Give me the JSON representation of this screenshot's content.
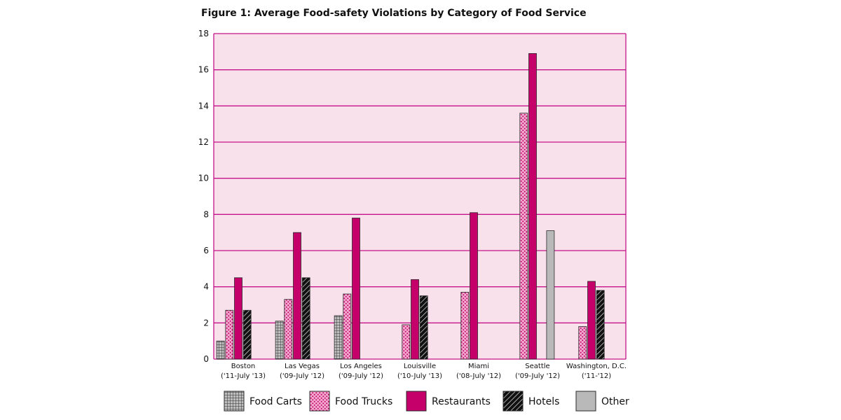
{
  "chart_data": {
    "type": "bar",
    "title": "Figure 1: Average Food-safety Violations by Category of Food Service",
    "xlabel": "",
    "ylabel": "",
    "ylim": [
      0,
      18
    ],
    "yticks": [
      0,
      2,
      4,
      6,
      8,
      10,
      12,
      14,
      16,
      18
    ],
    "grid": true,
    "legend_position": "bottom",
    "plot_background": "#f9e1ec",
    "grid_color": "#c4148a",
    "categories": [
      [
        "Boston",
        "('11-July '13)"
      ],
      [
        "Las Vegas",
        "('09-July '12)"
      ],
      [
        "Los Angeles",
        "('09-July '12)"
      ],
      [
        "Louisville",
        "('10-July '13)"
      ],
      [
        "Miami",
        "('08-July '12)"
      ],
      [
        "Seattle",
        "('09-July '12)"
      ],
      [
        "Washington, D.C.",
        "('11-'12)"
      ]
    ],
    "series": [
      {
        "name": "Food Carts",
        "pattern": "grid",
        "color": "#9a9a9a",
        "values": [
          1.0,
          2.1,
          2.4,
          null,
          null,
          null,
          null
        ]
      },
      {
        "name": "Food Trucks",
        "pattern": "dots",
        "color": "#e87fb4",
        "values": [
          2.7,
          3.3,
          3.6,
          1.9,
          3.7,
          13.6,
          1.8
        ]
      },
      {
        "name": "Restaurants",
        "pattern": "solid",
        "color": "#c5006a",
        "values": [
          4.5,
          7.0,
          7.8,
          4.4,
          8.1,
          16.9,
          4.3
        ]
      },
      {
        "name": "Hotels",
        "pattern": "hatch",
        "color": "#111111",
        "values": [
          2.7,
          4.5,
          null,
          3.5,
          null,
          null,
          3.8
        ]
      },
      {
        "name": "Other",
        "pattern": "solid-gray",
        "color": "#b9b9b9",
        "values": [
          null,
          null,
          null,
          null,
          null,
          7.1,
          null
        ]
      }
    ]
  }
}
